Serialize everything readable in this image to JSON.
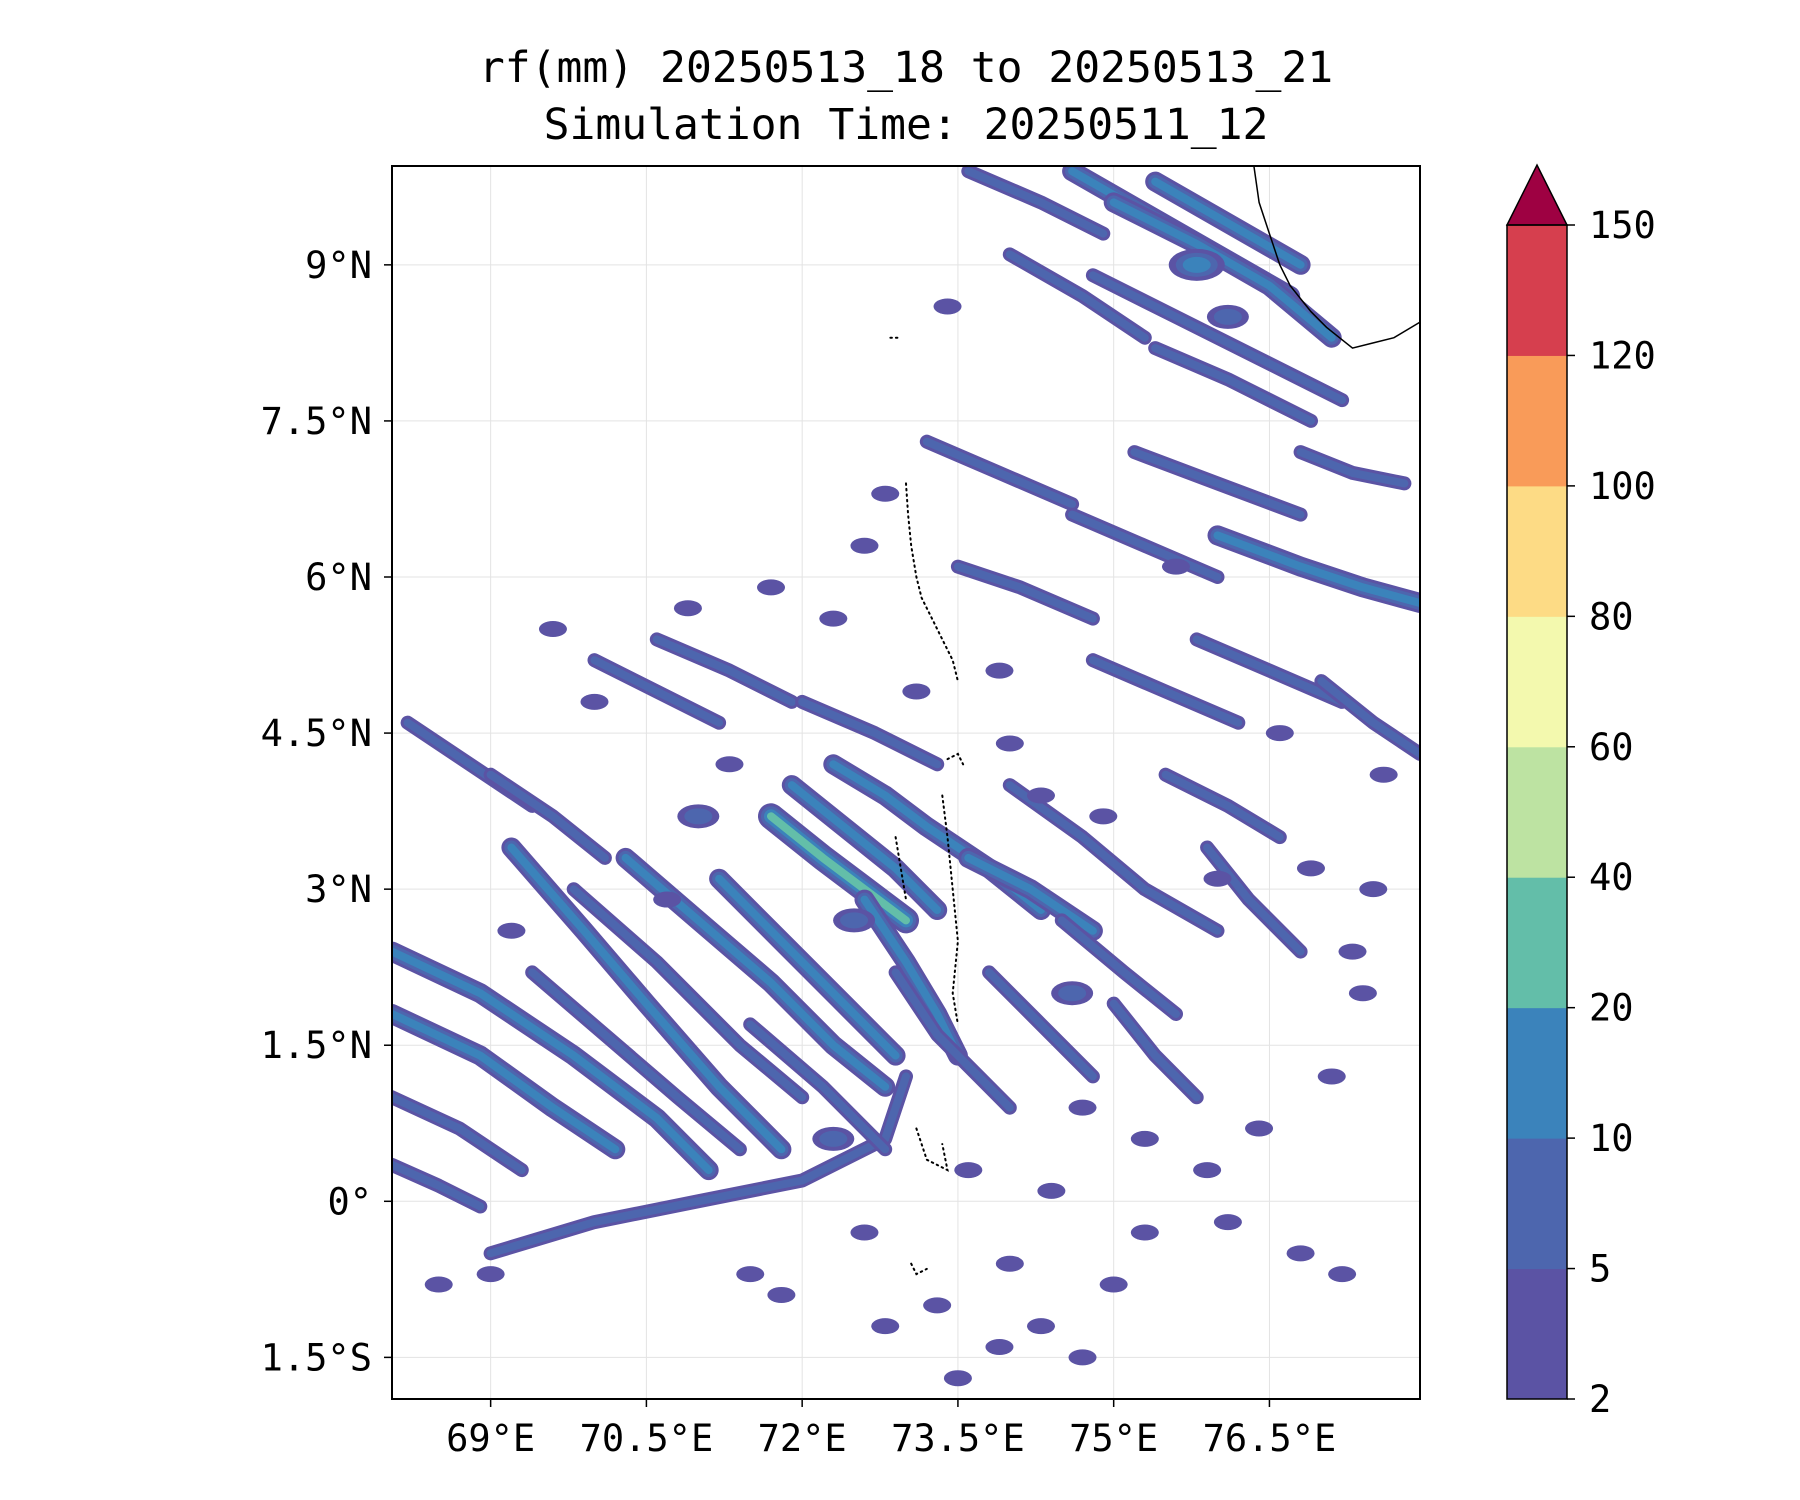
{
  "chart_data": {
    "type": "heatmap",
    "title": "rf(mm) 20250513_18 to 20250513_21",
    "subtitle": "Simulation Time: 20250511_12",
    "x_ticks": [
      69,
      70.5,
      72,
      73.5,
      75,
      76.5
    ],
    "x_tick_labels": [
      "69°E",
      "70.5°E",
      "72°E",
      "73.5°E",
      "75°E",
      "76.5°E"
    ],
    "y_ticks": [
      9,
      7.5,
      6,
      4.5,
      3,
      1.5,
      0,
      -1.5
    ],
    "y_tick_labels": [
      "9°N",
      "7.5°N",
      "6°N",
      "4.5°N",
      "3°N",
      "1.5°N",
      "0°",
      "1.5°S"
    ],
    "xlim": [
      68.05,
      77.95
    ],
    "ylim": [
      -1.9,
      9.95
    ],
    "grid": true,
    "colorbar": {
      "levels": [
        2,
        5,
        10,
        20,
        40,
        60,
        80,
        100,
        120,
        150
      ],
      "tick_labels": [
        "2",
        "5",
        "10",
        "20",
        "40",
        "60",
        "80",
        "100",
        "120",
        "150"
      ],
      "colors": [
        "#5b53a4",
        "#4d66ae",
        "#3b83bb",
        "#63bea9",
        "#bde3a2",
        "#f3f9ae",
        "#fddb85",
        "#f99b59",
        "#d63f4e"
      ],
      "extend_color": "#9e0142"
    },
    "rain_bands": [
      {
        "path": [
          [
            68.05,
            2.4
          ],
          [
            68.9,
            2.0
          ],
          [
            69.8,
            1.4
          ],
          [
            70.6,
            0.8
          ],
          [
            71.1,
            0.3
          ]
        ],
        "level": 2
      },
      {
        "path": [
          [
            68.05,
            1.8
          ],
          [
            68.9,
            1.4
          ],
          [
            69.6,
            0.9
          ],
          [
            70.2,
            0.5
          ]
        ],
        "level": 2
      },
      {
        "path": [
          [
            68.05,
            1.0
          ],
          [
            68.7,
            0.7
          ],
          [
            69.3,
            0.3
          ]
        ],
        "level": 1
      },
      {
        "path": [
          [
            68.05,
            0.35
          ],
          [
            68.5,
            0.15
          ],
          [
            68.9,
            -0.05
          ]
        ],
        "level": 1
      },
      {
        "path": [
          [
            69.2,
            3.4
          ],
          [
            69.9,
            2.6
          ],
          [
            70.5,
            1.9
          ],
          [
            71.2,
            1.1
          ],
          [
            71.8,
            0.5
          ]
        ],
        "level": 2
      },
      {
        "path": [
          [
            69.4,
            2.2
          ],
          [
            70.1,
            1.6
          ],
          [
            70.8,
            1.0
          ],
          [
            71.4,
            0.5
          ]
        ],
        "level": 1
      },
      {
        "path": [
          [
            69.8,
            3.0
          ],
          [
            70.6,
            2.3
          ],
          [
            71.4,
            1.5
          ],
          [
            72.0,
            1.0
          ]
        ],
        "level": 1
      },
      {
        "path": [
          [
            70.3,
            3.3
          ],
          [
            71.0,
            2.7
          ],
          [
            71.7,
            2.1
          ],
          [
            72.3,
            1.5
          ],
          [
            72.8,
            1.1
          ]
        ],
        "level": 2
      },
      {
        "path": [
          [
            71.2,
            3.1
          ],
          [
            71.8,
            2.5
          ],
          [
            72.4,
            1.9
          ],
          [
            72.9,
            1.4
          ]
        ],
        "level": 2
      },
      {
        "path": [
          [
            69.0,
            -0.5
          ],
          [
            70.0,
            -0.2
          ],
          [
            71.0,
            0.0
          ],
          [
            72.0,
            0.2
          ],
          [
            72.8,
            0.6
          ],
          [
            73.0,
            1.2
          ]
        ],
        "level": 1
      },
      {
        "path": [
          [
            71.7,
            3.7
          ],
          [
            72.2,
            3.3
          ],
          [
            72.6,
            3.0
          ],
          [
            73.0,
            2.7
          ]
        ],
        "level": 3
      },
      {
        "path": [
          [
            71.9,
            4.0
          ],
          [
            72.4,
            3.6
          ],
          [
            72.9,
            3.2
          ],
          [
            73.3,
            2.8
          ]
        ],
        "level": 2
      },
      {
        "path": [
          [
            72.3,
            4.2
          ],
          [
            72.8,
            3.9
          ],
          [
            73.2,
            3.6
          ],
          [
            73.8,
            3.2
          ],
          [
            74.3,
            2.8
          ]
        ],
        "level": 2
      },
      {
        "path": [
          [
            73.6,
            3.3
          ],
          [
            74.2,
            3.0
          ],
          [
            74.8,
            2.6
          ]
        ],
        "level": 2
      },
      {
        "path": [
          [
            72.6,
            2.9
          ],
          [
            73.0,
            2.3
          ],
          [
            73.3,
            1.8
          ],
          [
            73.5,
            1.4
          ]
        ],
        "level": 2
      },
      {
        "path": [
          [
            74.0,
            4.0
          ],
          [
            74.7,
            3.5
          ],
          [
            75.3,
            3.0
          ],
          [
            76.0,
            2.6
          ]
        ],
        "level": 1
      },
      {
        "path": [
          [
            74.5,
            2.7
          ],
          [
            75.1,
            2.2
          ],
          [
            75.6,
            1.8
          ]
        ],
        "level": 1
      },
      {
        "path": [
          [
            75.9,
            3.4
          ],
          [
            76.3,
            2.9
          ],
          [
            76.8,
            2.4
          ]
        ],
        "level": 1
      },
      {
        "path": [
          [
            70.0,
            5.2
          ],
          [
            70.6,
            4.9
          ],
          [
            71.2,
            4.6
          ]
        ],
        "level": 1
      },
      {
        "path": [
          [
            70.6,
            5.4
          ],
          [
            71.3,
            5.1
          ],
          [
            71.9,
            4.8
          ]
        ],
        "level": 1
      },
      {
        "path": [
          [
            68.2,
            4.6
          ],
          [
            68.8,
            4.2
          ],
          [
            69.4,
            3.8
          ]
        ],
        "level": 1
      },
      {
        "path": [
          [
            69.0,
            4.1
          ],
          [
            69.6,
            3.7
          ],
          [
            70.1,
            3.3
          ]
        ],
        "level": 1
      },
      {
        "path": [
          [
            72.0,
            4.8
          ],
          [
            72.7,
            4.5
          ],
          [
            73.3,
            4.2
          ]
        ],
        "level": 1
      },
      {
        "path": [
          [
            73.5,
            6.1
          ],
          [
            74.1,
            5.9
          ],
          [
            74.8,
            5.6
          ]
        ],
        "level": 1
      },
      {
        "path": [
          [
            73.2,
            7.3
          ],
          [
            73.9,
            7.0
          ],
          [
            74.6,
            6.7
          ]
        ],
        "level": 1
      },
      {
        "path": [
          [
            74.6,
            6.6
          ],
          [
            75.3,
            6.3
          ],
          [
            76.0,
            6.0
          ]
        ],
        "level": 1
      },
      {
        "path": [
          [
            75.2,
            7.2
          ],
          [
            76.0,
            6.9
          ],
          [
            76.8,
            6.6
          ]
        ],
        "level": 1
      },
      {
        "path": [
          [
            76.0,
            6.4
          ],
          [
            76.8,
            6.1
          ],
          [
            77.4,
            5.9
          ],
          [
            77.95,
            5.75
          ]
        ],
        "level": 2
      },
      {
        "path": [
          [
            76.8,
            7.2
          ],
          [
            77.3,
            7.0
          ],
          [
            77.8,
            6.9
          ]
        ],
        "level": 1
      },
      {
        "path": [
          [
            75.8,
            5.4
          ],
          [
            76.5,
            5.1
          ],
          [
            77.2,
            4.8
          ]
        ],
        "level": 1
      },
      {
        "path": [
          [
            74.8,
            5.2
          ],
          [
            75.5,
            4.9
          ],
          [
            76.2,
            4.6
          ]
        ],
        "level": 1
      },
      {
        "path": [
          [
            75.5,
            4.1
          ],
          [
            76.1,
            3.8
          ],
          [
            76.6,
            3.5
          ]
        ],
        "level": 1
      },
      {
        "path": [
          [
            77.0,
            5.0
          ],
          [
            77.5,
            4.6
          ],
          [
            77.95,
            4.3
          ]
        ],
        "level": 1
      },
      {
        "path": [
          [
            73.6,
            9.9
          ],
          [
            74.3,
            9.6
          ],
          [
            74.9,
            9.3
          ]
        ],
        "level": 1
      },
      {
        "path": [
          [
            74.6,
            9.9
          ],
          [
            75.3,
            9.5
          ],
          [
            76.0,
            9.1
          ],
          [
            76.7,
            8.7
          ]
        ],
        "level": 2
      },
      {
        "path": [
          [
            75.0,
            9.6
          ],
          [
            75.8,
            9.2
          ],
          [
            76.5,
            8.8
          ],
          [
            77.1,
            8.3
          ]
        ],
        "level": 2
      },
      {
        "path": [
          [
            75.4,
            9.8
          ],
          [
            76.1,
            9.4
          ],
          [
            76.8,
            9.0
          ]
        ],
        "level": 2
      },
      {
        "path": [
          [
            74.8,
            8.9
          ],
          [
            75.6,
            8.5
          ],
          [
            76.4,
            8.1
          ],
          [
            77.2,
            7.7
          ]
        ],
        "level": 1
      },
      {
        "path": [
          [
            74.0,
            9.1
          ],
          [
            74.7,
            8.7
          ],
          [
            75.3,
            8.3
          ]
        ],
        "level": 1
      },
      {
        "path": [
          [
            75.4,
            8.2
          ],
          [
            76.1,
            7.9
          ],
          [
            76.9,
            7.5
          ]
        ],
        "level": 1
      },
      {
        "path": [
          [
            72.9,
            2.2
          ],
          [
            73.3,
            1.6
          ],
          [
            73.7,
            1.2
          ],
          [
            74.0,
            0.9
          ]
        ],
        "level": 1
      },
      {
        "path": [
          [
            73.8,
            2.2
          ],
          [
            74.3,
            1.7
          ],
          [
            74.8,
            1.2
          ]
        ],
        "level": 1
      },
      {
        "path": [
          [
            75.0,
            1.9
          ],
          [
            75.4,
            1.4
          ],
          [
            75.8,
            1.0
          ]
        ],
        "level": 1
      },
      {
        "path": [
          [
            71.5,
            1.7
          ],
          [
            72.2,
            1.1
          ],
          [
            72.8,
            0.5
          ]
        ],
        "level": 1
      }
    ],
    "rain_cells": [
      [
        69.6,
        5.5,
        1
      ],
      [
        70.9,
        5.7,
        1
      ],
      [
        72.6,
        6.3,
        1
      ],
      [
        71.3,
        4.2,
        1
      ],
      [
        69.2,
        2.6,
        1
      ],
      [
        74.0,
        4.4,
        1
      ],
      [
        74.3,
        3.9,
        1
      ],
      [
        73.9,
        5.1,
        1
      ],
      [
        76.6,
        4.5,
        1
      ],
      [
        77.6,
        4.1,
        1
      ],
      [
        76.0,
        3.1,
        1
      ],
      [
        77.4,
        2.0,
        1
      ],
      [
        77.1,
        1.2,
        1
      ],
      [
        76.4,
        0.7,
        1
      ],
      [
        75.9,
        0.3,
        1
      ],
      [
        75.3,
        0.6,
        1
      ],
      [
        74.7,
        0.9,
        1
      ],
      [
        73.6,
        0.3,
        1
      ],
      [
        72.6,
        -0.3,
        1
      ],
      [
        73.3,
        -1.0,
        1
      ],
      [
        74.0,
        -0.6,
        1
      ],
      [
        74.3,
        -1.2,
        1
      ],
      [
        73.9,
        -1.4,
        1
      ],
      [
        71.5,
        -0.7,
        1
      ],
      [
        71.8,
        -0.9,
        1
      ],
      [
        72.8,
        -1.2,
        1
      ],
      [
        75.3,
        -0.3,
        1
      ],
      [
        76.1,
        -0.2,
        1
      ],
      [
        76.8,
        -0.5,
        1
      ],
      [
        77.2,
        -0.7,
        1
      ],
      [
        68.5,
        -0.8,
        1
      ],
      [
        69.0,
        -0.7,
        1
      ],
      [
        72.3,
        5.6,
        1
      ],
      [
        71.7,
        5.9,
        1
      ],
      [
        70.0,
        4.8,
        1
      ],
      [
        73.1,
        4.9,
        1
      ],
      [
        72.8,
        6.8,
        1
      ],
      [
        75.6,
        6.1,
        1
      ],
      [
        77.5,
        3.0,
        1
      ],
      [
        77.3,
        2.4,
        1
      ],
      [
        76.9,
        3.2,
        1
      ],
      [
        74.4,
        0.1,
        1
      ],
      [
        75.0,
        -0.8,
        1
      ],
      [
        74.7,
        -1.5,
        1
      ],
      [
        73.5,
        -1.7,
        1
      ],
      [
        72.3,
        0.6,
        2
      ],
      [
        72.5,
        2.7,
        2
      ],
      [
        74.6,
        2.0,
        2
      ],
      [
        74.9,
        3.7,
        1
      ],
      [
        73.4,
        8.6,
        1
      ],
      [
        71.0,
        3.7,
        2
      ],
      [
        70.7,
        2.9,
        1
      ],
      [
        75.8,
        9.0,
        3
      ],
      [
        76.1,
        8.5,
        2
      ]
    ],
    "coastline": [
      [
        76.35,
        9.95
      ],
      [
        76.4,
        9.6
      ],
      [
        76.5,
        9.3
      ],
      [
        76.6,
        9.0
      ],
      [
        76.7,
        8.8
      ],
      [
        76.9,
        8.55
      ],
      [
        77.05,
        8.4
      ],
      [
        77.3,
        8.2
      ],
      [
        77.5,
        8.25
      ],
      [
        77.7,
        8.3
      ],
      [
        77.95,
        8.45
      ]
    ],
    "islands": [
      [
        [
          72.85,
          8.3
        ],
        [
          72.95,
          8.3
        ]
      ],
      [
        [
          73.0,
          6.9
        ],
        [
          73.02,
          6.6
        ],
        [
          73.05,
          6.3
        ],
        [
          73.1,
          6.0
        ],
        [
          73.15,
          5.8
        ],
        [
          73.25,
          5.6
        ],
        [
          73.35,
          5.4
        ],
        [
          73.45,
          5.2
        ],
        [
          73.5,
          5.0
        ]
      ],
      [
        [
          73.4,
          4.25
        ],
        [
          73.5,
          4.3
        ],
        [
          73.55,
          4.2
        ]
      ],
      [
        [
          73.35,
          3.9
        ],
        [
          73.4,
          3.5
        ],
        [
          73.45,
          3.0
        ],
        [
          73.5,
          2.5
        ],
        [
          73.45,
          2.0
        ],
        [
          73.5,
          1.7
        ]
      ],
      [
        [
          72.9,
          3.5
        ],
        [
          72.95,
          3.2
        ],
        [
          73.0,
          2.9
        ]
      ],
      [
        [
          73.1,
          0.7
        ],
        [
          73.2,
          0.4
        ],
        [
          73.4,
          0.3
        ],
        [
          73.35,
          0.55
        ]
      ],
      [
        [
          73.05,
          -0.6
        ],
        [
          73.1,
          -0.7
        ],
        [
          73.2,
          -0.65
        ]
      ]
    ]
  }
}
